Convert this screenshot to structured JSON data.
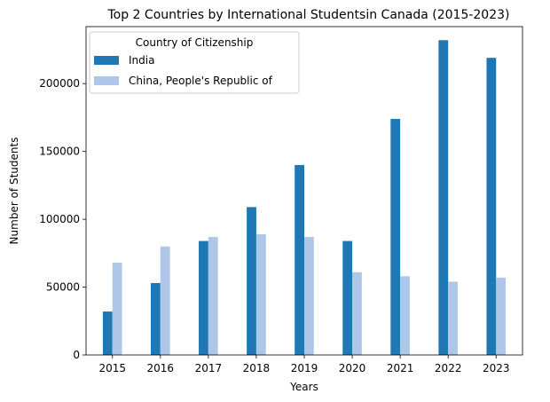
{
  "chart_data": {
    "type": "bar",
    "title": "Top 2 Countries by International Studentsin Canada (2015-2023)",
    "xlabel": "Years",
    "ylabel": "Number of Students",
    "categories": [
      "2015",
      "2016",
      "2017",
      "2018",
      "2019",
      "2020",
      "2021",
      "2022",
      "2023"
    ],
    "series": [
      {
        "name": "India",
        "color": "#1f77b4",
        "values": [
          32000,
          53000,
          84000,
          109000,
          140000,
          84000,
          174000,
          232000,
          219000
        ]
      },
      {
        "name": "China, People's Republic of",
        "color": "#aec7e8",
        "values": [
          68000,
          80000,
          87000,
          89000,
          87000,
          61000,
          58000,
          54000,
          57000
        ]
      }
    ],
    "ylim": [
      0,
      242000
    ],
    "yticks": [
      0,
      50000,
      100000,
      150000,
      200000
    ],
    "ytick_labels": [
      "0",
      "50000",
      "100000",
      "150000",
      "200000"
    ],
    "grid": false,
    "legend": {
      "title": "Country of Citizenship",
      "placement": "top-left"
    }
  }
}
